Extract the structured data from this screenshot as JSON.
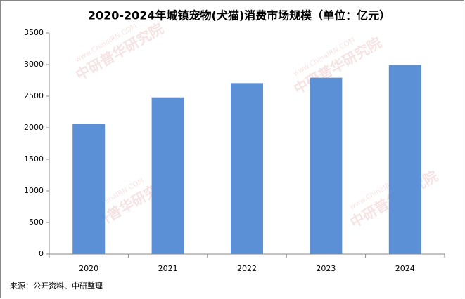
{
  "chart_data": {
    "type": "bar",
    "title": "2020-2024年城镇宠物(犬猫)消费市场规模（单位：亿元）",
    "categories": [
      "2020",
      "2021",
      "2022",
      "2023",
      "2024"
    ],
    "values": [
      2065,
      2481,
      2707,
      2793,
      2994
    ],
    "color": "#5b8fd6",
    "ylim": [
      0,
      3500
    ],
    "yticks": [
      0,
      500,
      1000,
      1500,
      2000,
      2500,
      3000,
      3500
    ],
    "grid": false,
    "source": "来源：公开资料、中研整理",
    "watermark": "中研普华研究院",
    "watermark_url": "www.ChinaIRN.COM"
  }
}
